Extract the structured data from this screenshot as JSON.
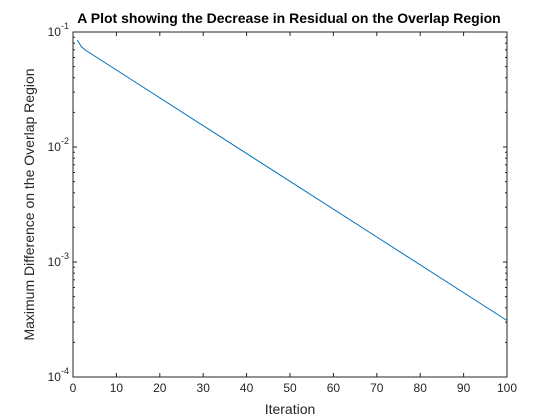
{
  "chart_data": {
    "type": "line",
    "title": "A Plot showing the Decrease in Residual on the Overlap Region",
    "xlabel": "Iteration",
    "ylabel": "Maximum Difference on the Overlap Region",
    "xlim": [
      0,
      100
    ],
    "ylim": [
      0.0001,
      0.1
    ],
    "yscale": "log",
    "x_ticks": [
      0,
      10,
      20,
      30,
      40,
      50,
      60,
      70,
      80,
      90,
      100
    ],
    "y_ticks": [
      {
        "value": 0.0001,
        "base": "10",
        "exp": "-4"
      },
      {
        "value": 0.001,
        "base": "10",
        "exp": "-3"
      },
      {
        "value": 0.01,
        "base": "10",
        "exp": "-2"
      },
      {
        "value": 0.1,
        "base": "10",
        "exp": "-1"
      }
    ],
    "grid": false,
    "series": [
      {
        "color": "#0072BD",
        "x": [
          1,
          2,
          3,
          100
        ],
        "y": [
          0.085,
          0.074,
          0.069,
          0.00031
        ]
      }
    ]
  }
}
